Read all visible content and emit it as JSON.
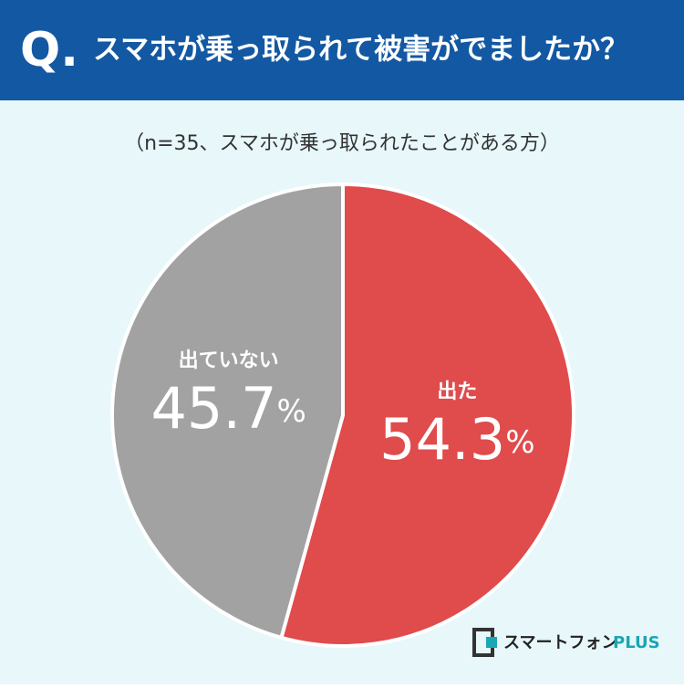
{
  "header": {
    "mark": "Q.",
    "title": "スマホが乗っ取られて被害がでましたか？"
  },
  "chart_data": {
    "type": "pie",
    "subtitle": "（n=35、スマホが乗っ取られたことがある方）",
    "categories": [
      "出た",
      "出ていない"
    ],
    "values": [
      54.3,
      45.7
    ],
    "value_labels": [
      "54.3%",
      "45.7%"
    ],
    "colors": [
      "#e04b4c",
      "#a2a2a2"
    ]
  },
  "logo": {
    "text": "スマートフォン",
    "accent": "PLUS"
  }
}
